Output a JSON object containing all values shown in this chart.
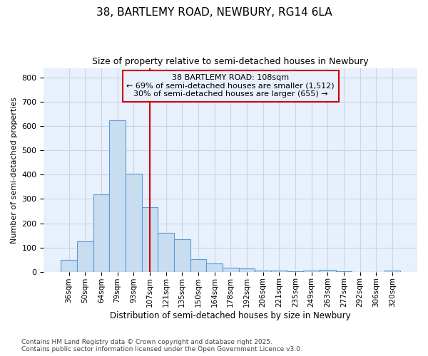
{
  "title1": "38, BARTLEMY ROAD, NEWBURY, RG14 6LA",
  "title2": "Size of property relative to semi-detached houses in Newbury",
  "xlabel": "Distribution of semi-detached houses by size in Newbury",
  "ylabel": "Number of semi-detached properties",
  "bar_labels": [
    "36sqm",
    "50sqm",
    "64sqm",
    "79sqm",
    "93sqm",
    "107sqm",
    "121sqm",
    "135sqm",
    "150sqm",
    "164sqm",
    "178sqm",
    "192sqm",
    "206sqm",
    "221sqm",
    "235sqm",
    "249sqm",
    "263sqm",
    "277sqm",
    "292sqm",
    "306sqm",
    "320sqm"
  ],
  "bar_values": [
    50,
    125,
    320,
    625,
    403,
    265,
    160,
    135,
    52,
    35,
    18,
    13,
    6,
    5,
    1,
    5,
    8,
    1,
    0,
    0,
    5
  ],
  "bar_color": "#c8ddf0",
  "bar_edge_color": "#5b9bd5",
  "vline_color": "#cc0000",
  "annotation_title": "38 BARTLEMY ROAD: 108sqm",
  "annotation_line1": "← 69% of semi-detached houses are smaller (1,512)",
  "annotation_line2": "30% of semi-detached houses are larger (655) →",
  "annotation_box_color": "#cc0000",
  "ylim": [
    0,
    840
  ],
  "yticks": [
    0,
    100,
    200,
    300,
    400,
    500,
    600,
    700,
    800
  ],
  "footer1": "Contains HM Land Registry data © Crown copyright and database right 2025.",
  "footer2": "Contains public sector information licensed under the Open Government Licence v3.0.",
  "fig_bg_color": "#ffffff",
  "plot_bg_color": "#e8f0fb",
  "grid_color": "#c5d5ea"
}
